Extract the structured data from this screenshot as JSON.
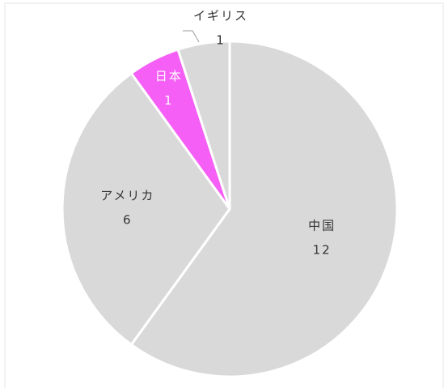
{
  "chart_data": {
    "type": "pie",
    "categories": [
      "中国",
      "アメリカ",
      "日本",
      "イギリス"
    ],
    "values": [
      12,
      6,
      1,
      1
    ],
    "colors": [
      "#d9d9d9",
      "#d9d9d9",
      "#f55ff5",
      "#d9d9d9"
    ]
  }
}
